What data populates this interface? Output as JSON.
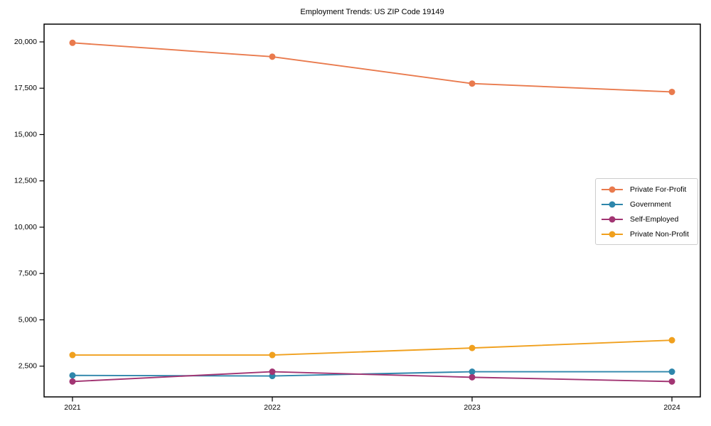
{
  "chart_data": {
    "type": "line",
    "title": "Employment Trends: US ZIP Code 19149",
    "xlabel": "",
    "ylabel": "",
    "categories": [
      "2021",
      "2022",
      "2023",
      "2024"
    ],
    "series": [
      {
        "name": "Private For-Profit",
        "color": "#E97A4D",
        "values": [
          19950,
          19200,
          17750,
          17300
        ]
      },
      {
        "name": "Government",
        "color": "#2E86AB",
        "values": [
          2000,
          1970,
          2200,
          2200
        ]
      },
      {
        "name": "Self-Employed",
        "color": "#A23573",
        "values": [
          1670,
          2200,
          1900,
          1670
        ]
      },
      {
        "name": "Private Non-Profit",
        "color": "#F0A01E",
        "values": [
          3100,
          3100,
          3480,
          3900
        ]
      }
    ],
    "y_ticks": [
      {
        "value": 2500,
        "label": "2,500"
      },
      {
        "value": 5000,
        "label": "5,000"
      },
      {
        "value": 7500,
        "label": "7,500"
      },
      {
        "value": 10000,
        "label": "10,000"
      },
      {
        "value": 12500,
        "label": "12,500"
      },
      {
        "value": 15000,
        "label": "15,000"
      },
      {
        "value": 17500,
        "label": "17,500"
      },
      {
        "value": 20000,
        "label": "20,000"
      }
    ],
    "ylim": [
      841,
      20958
    ],
    "grid": false,
    "marker": "o",
    "legend_position": "center right",
    "axis_color": "#000000"
  }
}
